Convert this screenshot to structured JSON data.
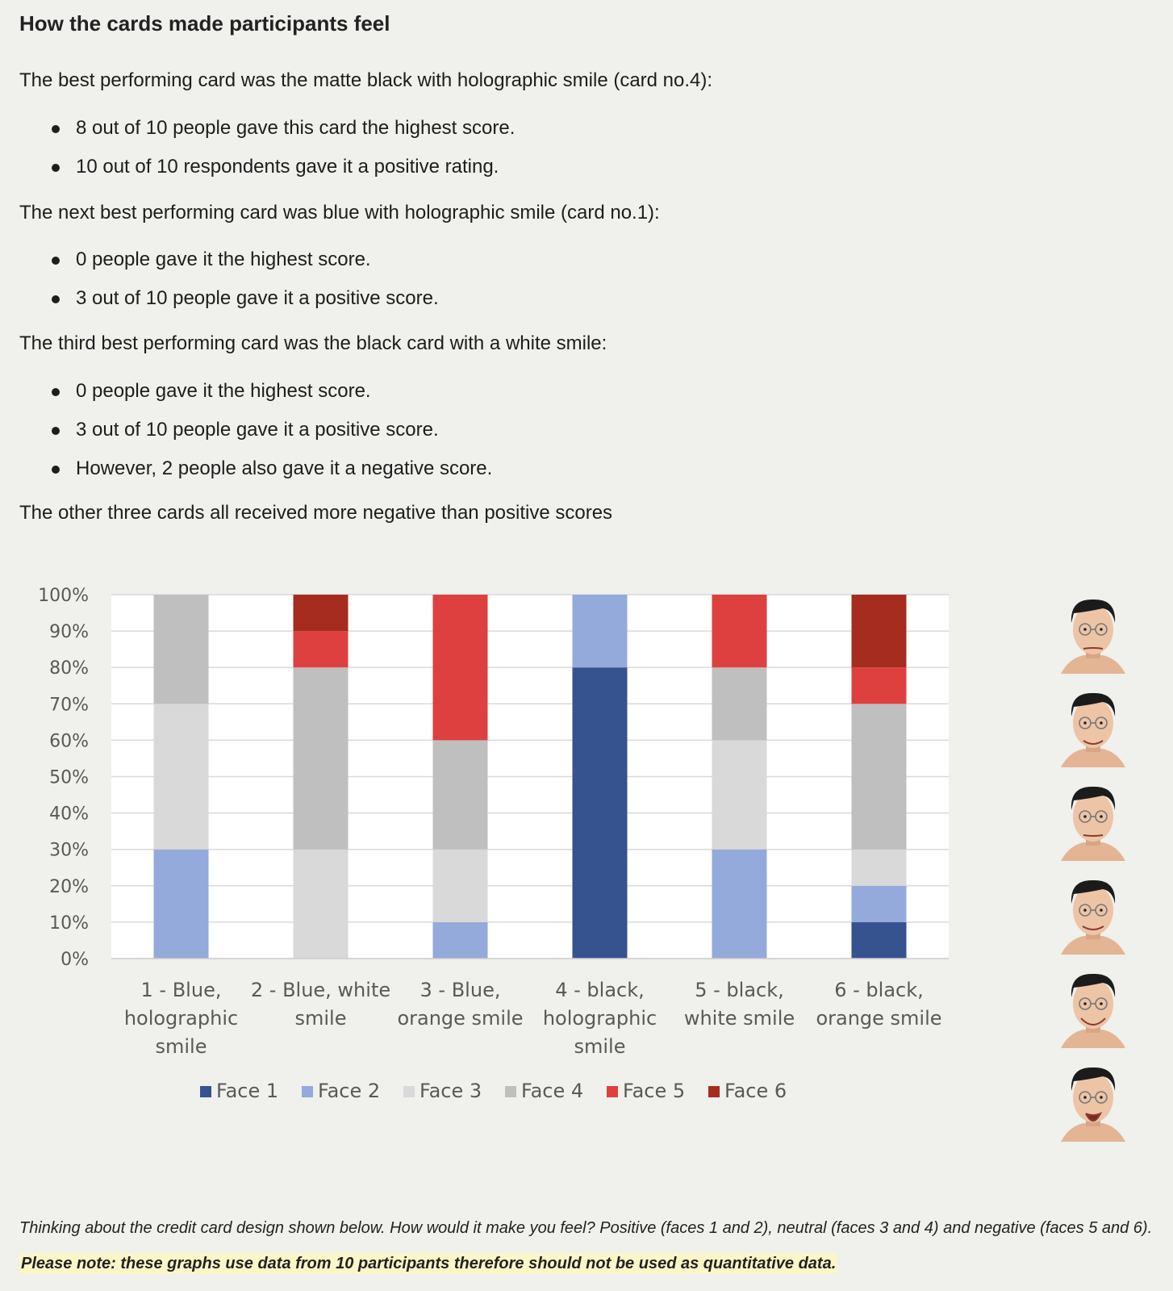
{
  "heading": "How the cards made participants feel",
  "sections": [
    {
      "intro": "The best performing card was the matte black with holographic smile (card no.4):",
      "bullets": [
        "8 out of 10 people gave this card the highest score.",
        "10 out of 10 respondents gave it a positive rating."
      ]
    },
    {
      "intro": "The next best performing card was blue with holographic smile (card no.1):",
      "bullets": [
        "0 people gave it the highest score.",
        "3 out of 10 people gave it a positive score."
      ]
    },
    {
      "intro": "The third best performing card was the black card with a white smile:",
      "bullets": [
        "0 people gave it the highest score.",
        "3 out of 10 people gave it a positive score.",
        "However, 2 people also gave it a negative score."
      ]
    }
  ],
  "closing": "The other three cards all received more negative than positive scores",
  "chart_data": {
    "type": "bar",
    "stacked": true,
    "categories": [
      [
        "1 - Blue,",
        "holographic",
        "smile"
      ],
      [
        "2 - Blue, white",
        "smile"
      ],
      [
        "3 - Blue,",
        "orange smile"
      ],
      [
        "4 - black,",
        "holographic",
        "smile"
      ],
      [
        "5 - black,",
        "white smile"
      ],
      [
        "6 - black,",
        "orange smile"
      ]
    ],
    "series": [
      {
        "name": "Face 1",
        "color": "#36528f",
        "values": [
          0,
          0,
          0,
          80,
          0,
          10
        ]
      },
      {
        "name": "Face 2",
        "color": "#93aadb",
        "values": [
          30,
          0,
          10,
          20,
          30,
          10
        ]
      },
      {
        "name": "Face 3",
        "color": "#d9d9d9",
        "values": [
          40,
          30,
          20,
          0,
          30,
          10
        ]
      },
      {
        "name": "Face 4",
        "color": "#bfbfbf",
        "values": [
          30,
          50,
          30,
          0,
          20,
          40
        ]
      },
      {
        "name": "Face 5",
        "color": "#de4040",
        "values": [
          0,
          10,
          40,
          0,
          20,
          10
        ]
      },
      {
        "name": "Face 6",
        "color": "#a62c20",
        "values": [
          0,
          10,
          0,
          0,
          0,
          20
        ]
      }
    ],
    "y_ticks": [
      "0%",
      "10%",
      "20%",
      "30%",
      "40%",
      "50%",
      "60%",
      "70%",
      "80%",
      "90%",
      "100%"
    ],
    "ylim": [
      0,
      100
    ],
    "grid": true,
    "legend": "bottom"
  },
  "faces_legend": [
    "face-1-icon",
    "face-2-icon",
    "face-3-icon",
    "face-4-icon",
    "face-5-icon",
    "face-6-icon"
  ],
  "footer": {
    "question": "Thinking about the credit card design shown below. How would it make you feel? Positive (faces 1 and 2), neutral (faces 3 and 4) and negative (faces 5 and 6).",
    "note": "Please note: these graphs use data from 10 participants therefore should not be used as quantitative data."
  }
}
